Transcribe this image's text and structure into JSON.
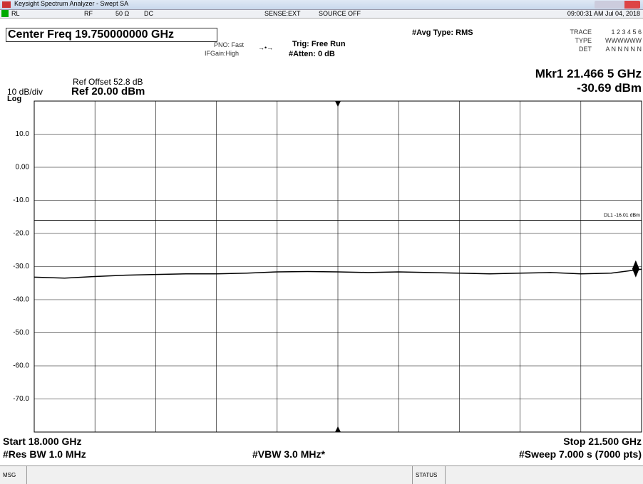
{
  "window": {
    "title": "Keysight Spectrum Analyzer - Swept SA"
  },
  "status_row": {
    "rl": "RL",
    "rf": "RF",
    "impedance": "50 Ω",
    "coupling": "DC",
    "sense": "SENSE:EXT",
    "source": "SOURCE OFF",
    "datetime": "09:00:31 AM Jul 04, 2018"
  },
  "header": {
    "center_freq": "Center Freq 19.750000000 GHz",
    "pno": "PNO: Fast",
    "ifgain": "IFGain:High",
    "trig": "Trig: Free Run",
    "atten": "#Atten: 0 dB",
    "avg_type": "#Avg Type: RMS",
    "trace_label": "TRACE",
    "trace_value": "1 2 3 4 5 6",
    "type_label": "TYPE",
    "type_value": "WWWWWW",
    "det_label": "DET",
    "det_value": "A N N N N N",
    "ref_offset": "Ref Offset 52.8 dB",
    "scale": "10 dB/div",
    "ref_level": "Ref 20.00 dBm",
    "log": "Log"
  },
  "chart_data": {
    "type": "line",
    "x": [
      18.0,
      18.175,
      18.35,
      18.525,
      18.7,
      18.875,
      19.05,
      19.225,
      19.4,
      19.575,
      19.75,
      19.925,
      20.1,
      20.275,
      20.45,
      20.625,
      20.8,
      20.975,
      21.15,
      21.325,
      21.5
    ],
    "values": [
      -33.2,
      -33.5,
      -33.0,
      -32.6,
      -32.4,
      -32.2,
      -32.2,
      -32.0,
      -31.6,
      -31.5,
      -31.6,
      -31.8,
      -31.6,
      -31.8,
      -32.0,
      -32.2,
      -32.0,
      -31.8,
      -32.2,
      -32.0,
      -30.8
    ],
    "color": "#000000",
    "xlim": [
      18.0,
      21.5
    ],
    "ylim": [
      -80,
      20
    ],
    "yticks": [
      {
        "value": 10,
        "label": "10.0"
      },
      {
        "value": 0,
        "label": "0.00"
      },
      {
        "value": -10,
        "label": "-10.0"
      },
      {
        "value": -20,
        "label": "-20.0"
      },
      {
        "value": -30,
        "label": "-30.0"
      },
      {
        "value": -40,
        "label": "-40.0"
      },
      {
        "value": -50,
        "label": "-50.0"
      },
      {
        "value": -60,
        "label": "-60.0"
      },
      {
        "value": -70,
        "label": "-70.0"
      }
    ],
    "grid": true,
    "display_line": {
      "label": "DL1 -16.01 dBm",
      "value": -16.01
    },
    "marker": {
      "label": "Mkr1 21.466 5 GHz",
      "x": 21.4665,
      "value": -30.69,
      "value_label": "-30.69 dBm"
    }
  },
  "footer": {
    "start": "Start 18.000 GHz",
    "stop": "Stop 21.500 GHz",
    "rbw": "#Res BW 1.0 MHz",
    "vbw": "#VBW 3.0 MHz*",
    "sweep": "#Sweep 7.000 s (7000 pts)",
    "msg": "MSG",
    "status": "STATUS"
  }
}
